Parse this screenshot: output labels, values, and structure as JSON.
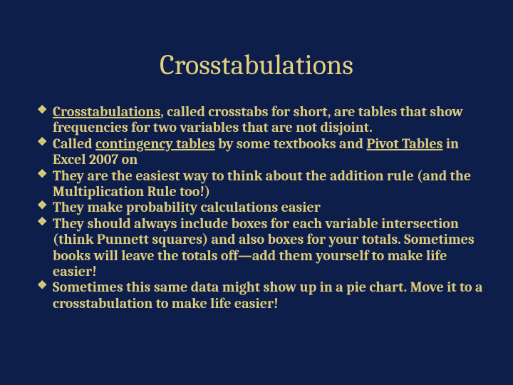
{
  "background_color": "#0e1e4a",
  "text_color": "#dccb7c",
  "title_color": "#e0d080",
  "font_family": "Cambria, Georgia, serif",
  "title": {
    "text": "Crosstabulations",
    "fontsize": 40
  },
  "body_fontsize": 20,
  "bullets": [
    {
      "segments": [
        {
          "text": " ",
          "u": false,
          "b": false
        },
        {
          "text": "Crosstabulations",
          "u": true,
          "b": true
        },
        {
          "text": ", called ",
          "u": false,
          "b": false
        },
        {
          "text": "crosstabs",
          "u": false,
          "b": true
        },
        {
          "text": " for short, are tables that show frequencies for two variables that are not disjoint.",
          "u": false,
          "b": false
        }
      ]
    },
    {
      "segments": [
        {
          "text": "Called ",
          "u": false,
          "b": false
        },
        {
          "text": "contingency tables",
          "u": true,
          "b": true
        },
        {
          "text": " by some textbooks and ",
          "u": false,
          "b": false
        },
        {
          "text": "Pivot Tables",
          "u": true,
          "b": true
        },
        {
          "text": " in Excel 2007 on",
          "u": false,
          "b": false
        }
      ]
    },
    {
      "segments": [
        {
          "text": "They are the easiest way to think about the addition rule (and the Multiplication Rule too!)",
          "u": false,
          "b": false
        }
      ]
    },
    {
      "segments": [
        {
          "text": "They make probability calculations easier",
          "u": false,
          "b": false
        }
      ]
    },
    {
      "segments": [
        {
          "text": "They should always include boxes for each variable intersection (think Punnett squares) and also boxes for your totals. Sometimes books will leave the totals off—add them yourself to make life easier!",
          "u": false,
          "b": false
        }
      ]
    },
    {
      "segments": [
        {
          "text": "Sometimes this same data might show up in a pie chart. Move it to a crosstabulation to make life easier!",
          "u": false,
          "b": false
        }
      ]
    }
  ]
}
